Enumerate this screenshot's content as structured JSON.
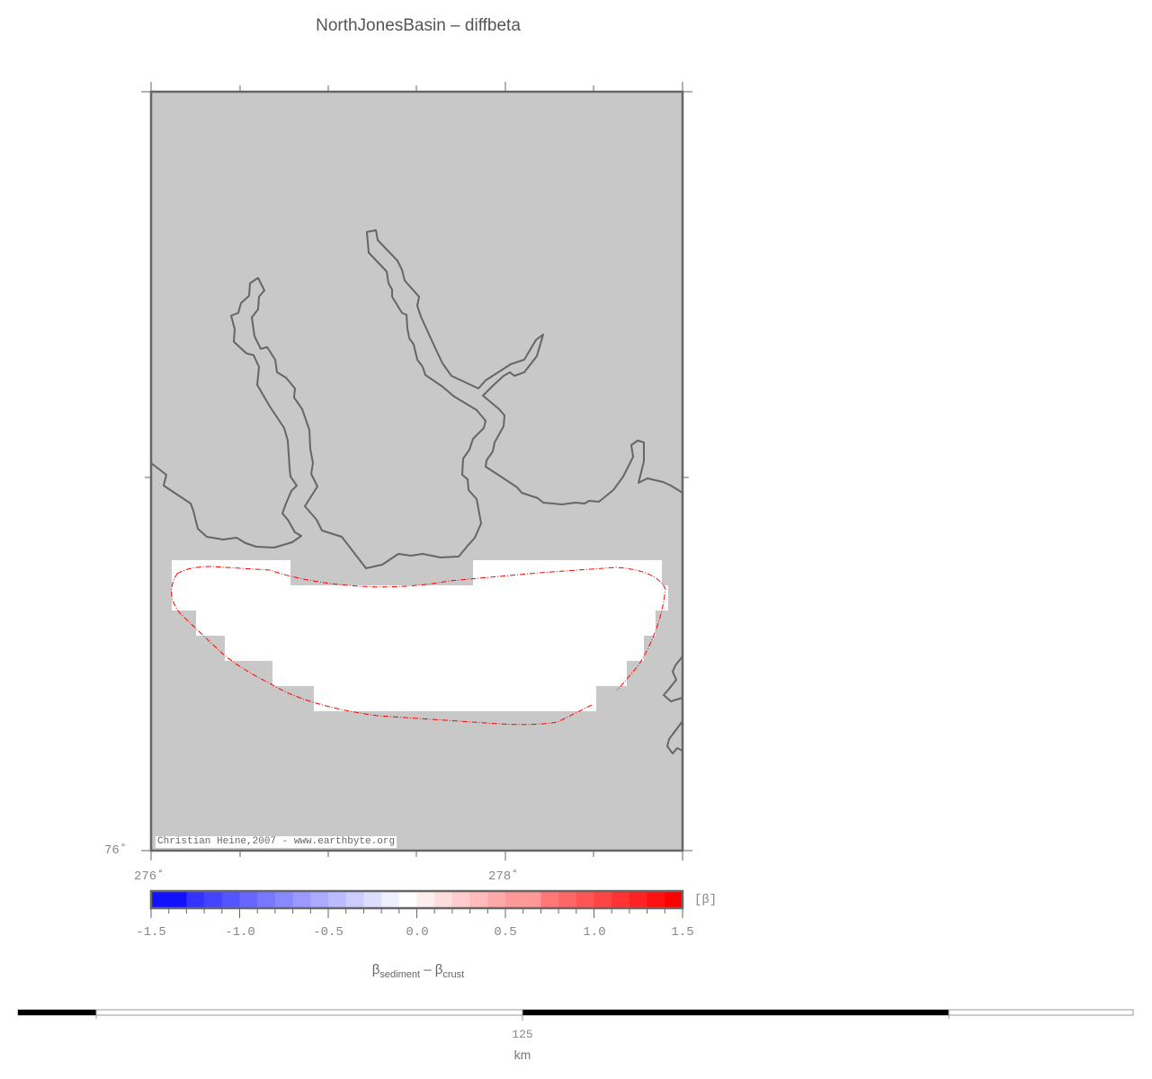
{
  "title": "NorthJonesBasin – diffbeta",
  "map": {
    "background_color": "#c8c8c8",
    "coast_color": "#666666",
    "basin_fill": "#ffffff",
    "outline_color": "#ff0000",
    "lat_labels": [
      "76˚"
    ],
    "lon_labels": [
      "276˚",
      "278˚"
    ],
    "credit": "Christian Heine,2007 - www.earthbyte.org"
  },
  "colorbar": {
    "min": -1.5,
    "max": 1.5,
    "step": 0.1,
    "low_color": "#0000ff",
    "mid_color": "#ffffff",
    "high_color": "#ff0000",
    "tick_labels": [
      "-1.5",
      "-1.0",
      "-0.5",
      "0.0",
      "0.5",
      "1.0",
      "1.5"
    ],
    "unit": "[β]",
    "label_main1": "β",
    "label_sub1": "sediment",
    "label_op": " – ",
    "label_main2": "β",
    "label_sub2": "crust"
  },
  "scalebar": {
    "label": "125",
    "unit": "km"
  }
}
